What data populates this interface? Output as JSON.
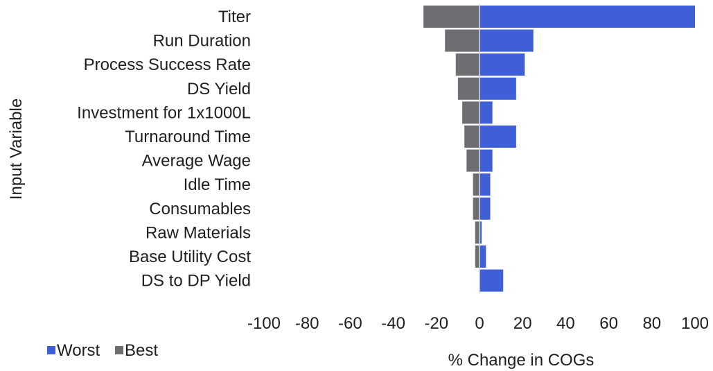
{
  "chart_data": {
    "type": "bar",
    "orientation": "horizontal",
    "style": "tornado",
    "title": "",
    "xlabel": "% Change in COGs",
    "ylabel": "Input Variable",
    "xlim": [
      -100,
      100
    ],
    "x_ticks": [
      -100,
      -80,
      -60,
      -40,
      -20,
      0,
      20,
      40,
      60,
      80,
      100
    ],
    "grid": false,
    "legend_position": "bottom-left",
    "categories": [
      "Titer",
      "Run Duration",
      "Process Success Rate",
      "DS Yield",
      "Investment for 1x1000L",
      "Turnaround Time",
      "Average Wage",
      "Idle Time",
      "Consumables",
      "Raw Materials",
      "Base Utility Cost",
      "DS to DP Yield"
    ],
    "series": [
      {
        "name": "Worst",
        "color": "#3f5fd6",
        "values": [
          100,
          25,
          21,
          17,
          6,
          17,
          6,
          5,
          5,
          1,
          3,
          11
        ]
      },
      {
        "name": "Best",
        "color": "#6d6e71",
        "values": [
          -26,
          -16,
          -11,
          -10,
          -8,
          -7,
          -6,
          -3,
          -3,
          -2,
          -2,
          0
        ]
      }
    ]
  }
}
